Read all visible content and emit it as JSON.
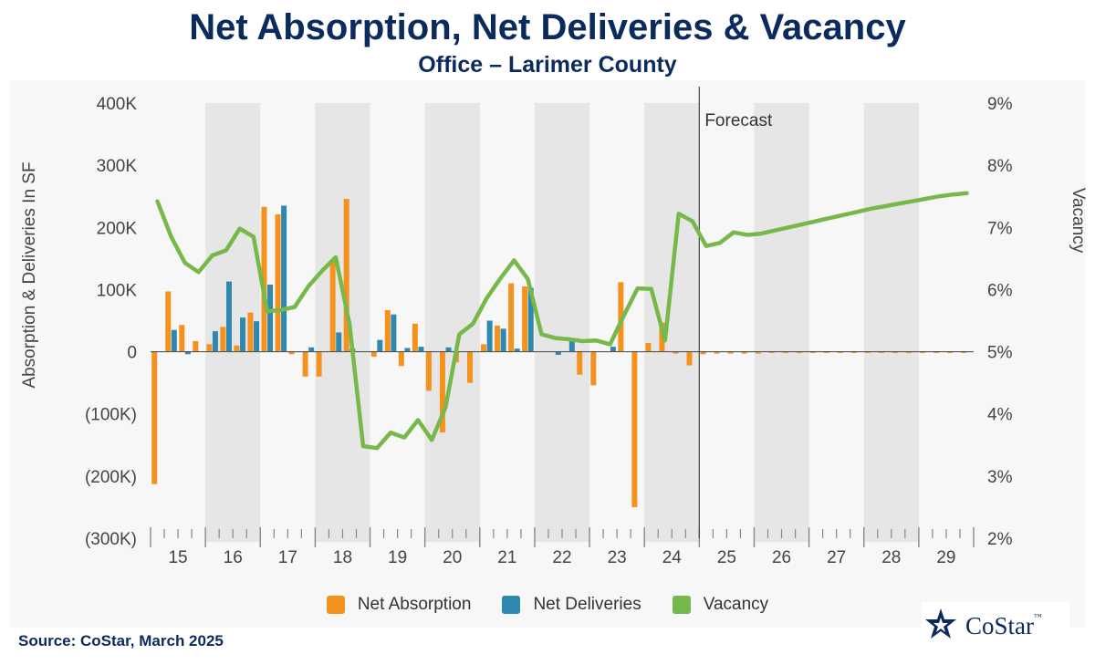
{
  "title": "Net Absorption, Net Deliveries & Vacancy",
  "subtitle": "Office – Larimer County",
  "source": "Source: CoStar, March 2025",
  "logo": {
    "text": "CoStar",
    "tm": "™"
  },
  "colors": {
    "absorption": "#f5921e",
    "deliveries": "#2e88b0",
    "vacancy": "#77b84a",
    "title": "#0b2a5e",
    "band": "#e6e6e6"
  },
  "chart_data": {
    "type": "bar",
    "x_tick_labels": [
      "15",
      "16",
      "17",
      "18",
      "19",
      "20",
      "21",
      "22",
      "23",
      "24",
      "25",
      "26",
      "27",
      "28",
      "29"
    ],
    "ylabel": "Absorption & Deliveries In SF",
    "y2label": "Vacancy",
    "y_tick_labels": [
      "400K",
      "300K",
      "200K",
      "100K",
      "0",
      "(100K)",
      "(200K)",
      "(300K)"
    ],
    "y2_tick_labels": [
      "9%",
      "8%",
      "7%",
      "6%",
      "5%",
      "4%",
      "3%",
      "2%"
    ],
    "ylim": [
      -300000,
      400000
    ],
    "y2lim": [
      2,
      9
    ],
    "forecast_label": "Forecast",
    "forecast_starts_at": "2025 Q1",
    "legend_position": "bottom",
    "quarters": [
      "2015 Q1",
      "2015 Q2",
      "2015 Q3",
      "2015 Q4",
      "2016 Q1",
      "2016 Q2",
      "2016 Q3",
      "2016 Q4",
      "2017 Q1",
      "2017 Q2",
      "2017 Q3",
      "2017 Q4",
      "2018 Q1",
      "2018 Q2",
      "2018 Q3",
      "2018 Q4",
      "2019 Q1",
      "2019 Q2",
      "2019 Q3",
      "2019 Q4",
      "2020 Q1",
      "2020 Q2",
      "2020 Q3",
      "2020 Q4",
      "2021 Q1",
      "2021 Q2",
      "2021 Q3",
      "2021 Q4",
      "2022 Q1",
      "2022 Q2",
      "2022 Q3",
      "2022 Q4",
      "2023 Q1",
      "2023 Q2",
      "2023 Q3",
      "2023 Q4",
      "2024 Q1",
      "2024 Q2",
      "2024 Q3",
      "2024 Q4",
      "2025 Q1",
      "2025 Q2",
      "2025 Q3",
      "2025 Q4",
      "2026 Q1",
      "2026 Q2",
      "2026 Q3",
      "2026 Q4",
      "2027 Q1",
      "2027 Q2",
      "2027 Q3",
      "2027 Q4",
      "2028 Q1",
      "2028 Q2",
      "2028 Q3",
      "2028 Q4",
      "2029 Q1",
      "2029 Q2",
      "2029 Q3",
      "2029 Q4"
    ],
    "series": [
      {
        "name": "Net Absorption",
        "values": [
          -213000,
          97000,
          43000,
          17000,
          12000,
          40000,
          10000,
          63000,
          233000,
          221000,
          -4000,
          -40000,
          -40000,
          147000,
          246000,
          0,
          -8000,
          67000,
          -23000,
          45000,
          -63000,
          -130000,
          -17000,
          -50000,
          12000,
          42000,
          110000,
          105000,
          0,
          0,
          0,
          -37000,
          -54000,
          0,
          112000,
          -250000,
          14000,
          47000,
          -3000,
          -22000,
          -4000,
          -3000,
          -3000,
          -3000,
          -3000,
          -2000,
          -2000,
          -2000,
          -2000,
          -2000,
          -2000,
          -2000,
          -2000,
          -2000,
          -2000,
          -2000,
          -2000,
          -2000,
          -2000,
          -2000
        ]
      },
      {
        "name": "Net Deliveries",
        "values": [
          0,
          35000,
          -4000,
          0,
          33000,
          113000,
          55000,
          49000,
          108000,
          235000,
          0,
          7000,
          0,
          31000,
          5000,
          0,
          19000,
          60000,
          6000,
          8000,
          0,
          7000,
          0,
          0,
          50000,
          37000,
          5000,
          103000,
          0,
          -5000,
          19000,
          0,
          0,
          8000,
          0,
          0,
          0,
          0,
          0,
          0,
          0,
          0,
          0,
          0,
          0,
          0,
          0,
          0,
          0,
          0,
          0,
          0,
          0,
          0,
          0,
          0,
          0,
          0,
          0,
          0
        ]
      },
      {
        "name": "Vacancy",
        "values": [
          7.42,
          6.85,
          6.43,
          6.28,
          6.55,
          6.63,
          6.98,
          6.85,
          5.65,
          5.67,
          5.72,
          6.05,
          6.3,
          6.52,
          5.45,
          3.48,
          3.45,
          3.7,
          3.62,
          3.9,
          3.58,
          4.1,
          5.28,
          5.45,
          5.86,
          6.18,
          6.47,
          6.17,
          5.28,
          5.22,
          5.2,
          5.17,
          5.18,
          5.12,
          5.58,
          6.02,
          6.01,
          5.18,
          7.22,
          7.1,
          6.7,
          6.75,
          6.92,
          6.88,
          6.9,
          6.95,
          7.0,
          7.05,
          7.1,
          7.15,
          7.2,
          7.25,
          7.3,
          7.34,
          7.38,
          7.42,
          7.46,
          7.5,
          7.53,
          7.55
        ]
      }
    ]
  }
}
